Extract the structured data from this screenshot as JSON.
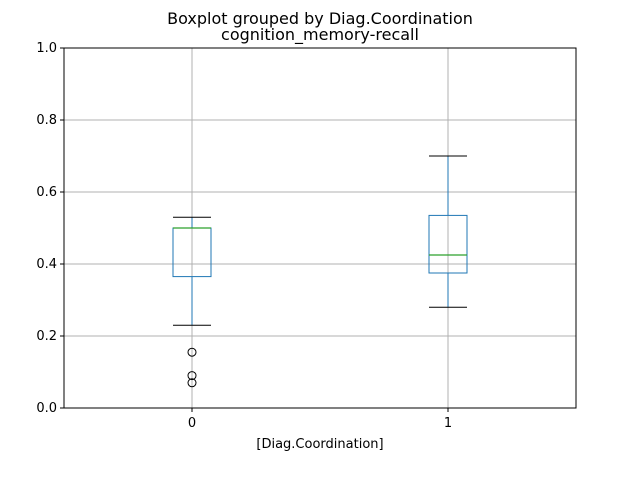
{
  "chart_data": {
    "type": "box",
    "suptitle": "Boxplot grouped by Diag.Coordination",
    "title": "cognition_memory-recall",
    "xlabel": "[Diag.Coordination]",
    "ylabel": "",
    "ylim": [
      0,
      1
    ],
    "yticks": [
      0.0,
      0.2,
      0.4,
      0.6,
      0.8,
      1.0
    ],
    "ytick_labels": [
      "0.0",
      "0.2",
      "0.4",
      "0.6",
      "0.8",
      "1.0"
    ],
    "grid": true,
    "categories": [
      "0",
      "1"
    ],
    "boxes": [
      {
        "category": "0",
        "whisker_low": 0.23,
        "q1": 0.365,
        "median": 0.5,
        "q3": 0.5,
        "whisker_high": 0.53,
        "outliers": [
          0.155,
          0.09,
          0.07
        ]
      },
      {
        "category": "1",
        "whisker_low": 0.28,
        "q1": 0.375,
        "median": 0.425,
        "q3": 0.535,
        "whisker_high": 0.7,
        "outliers": []
      }
    ],
    "colors": {
      "box": "#1f77b4",
      "median": "#2ca02c",
      "cap": "#000000",
      "grid": "#b0b0b0"
    }
  }
}
